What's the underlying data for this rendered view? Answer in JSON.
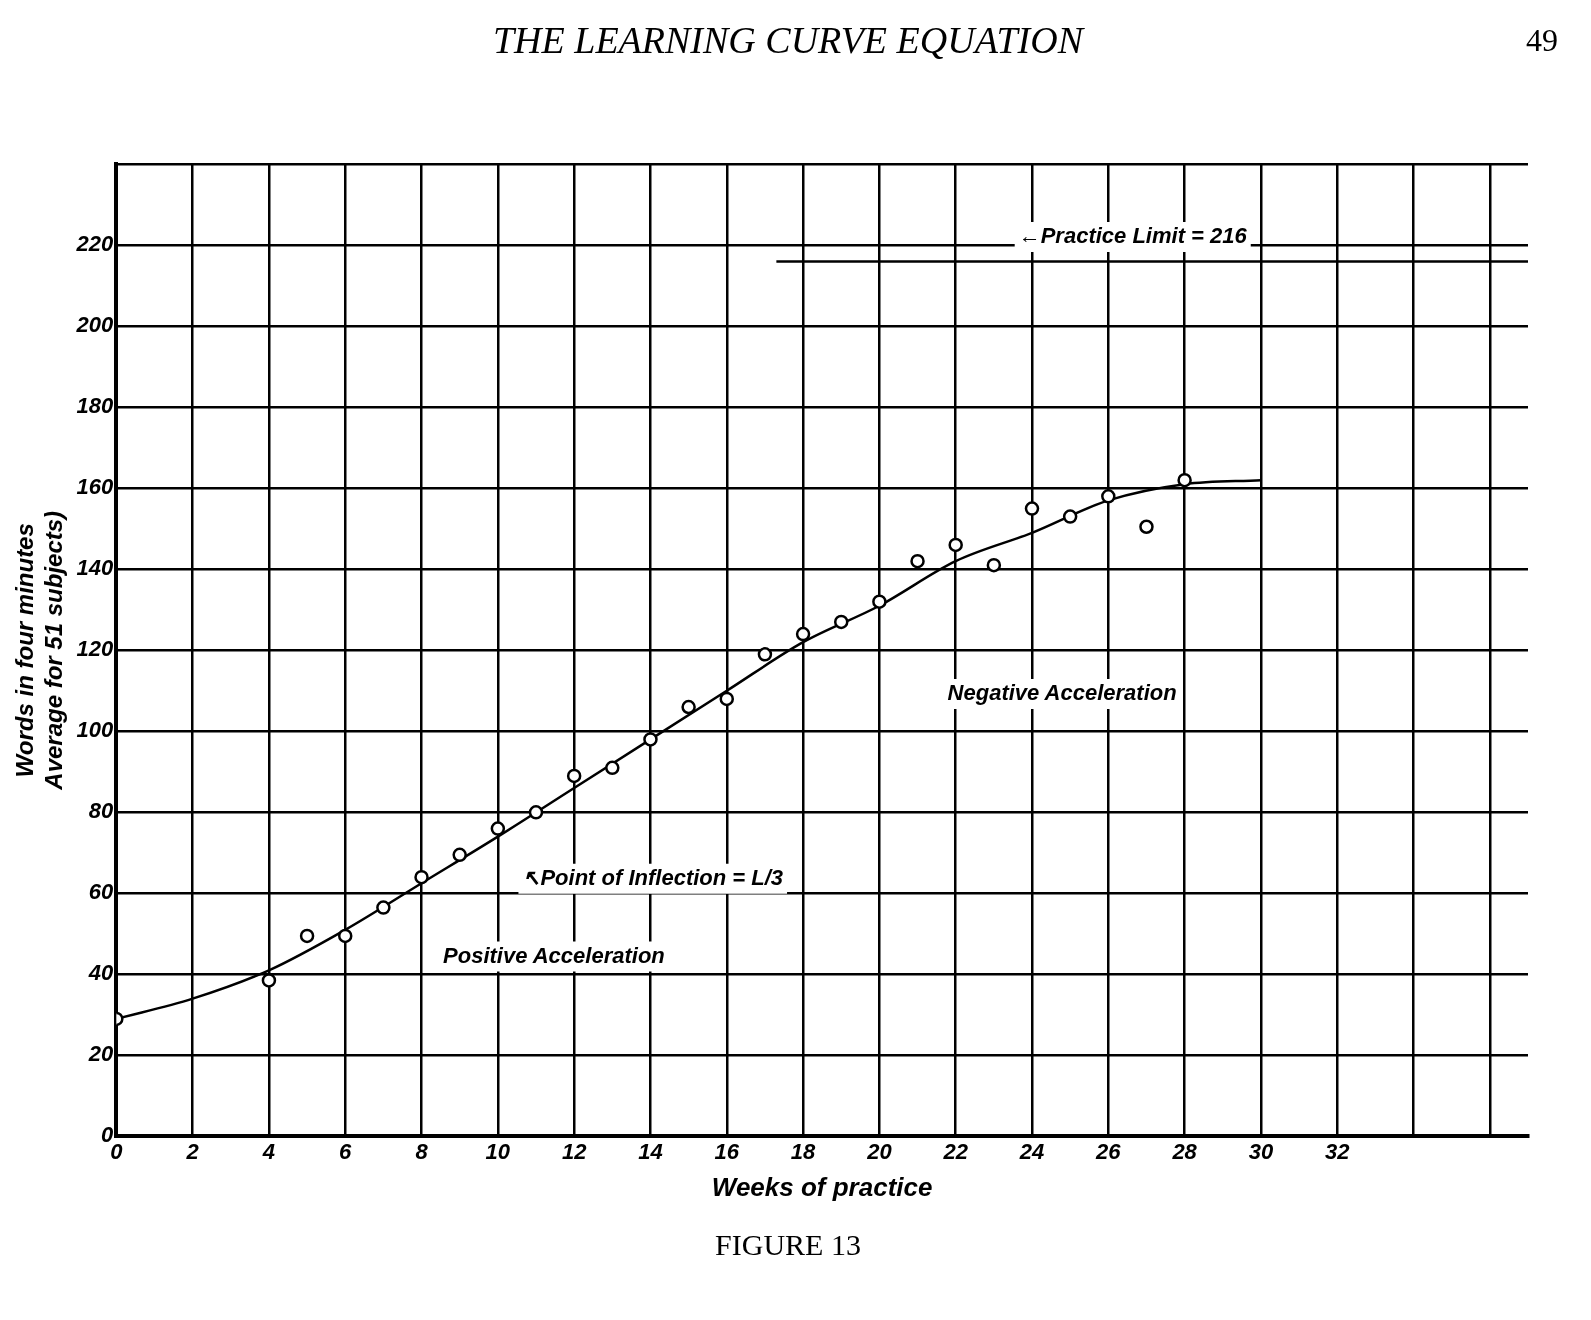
{
  "chart_data": {
    "type": "scatter",
    "title": "THE LEARNING CURVE EQUATION",
    "xlabel": "Weeks of practice",
    "ylabel": "Words in four minutes\nAverage for 51 subjects)",
    "xlim": [
      0,
      37
    ],
    "xticks": [
      0,
      2,
      4,
      6,
      8,
      10,
      12,
      14,
      16,
      18,
      20,
      22,
      24,
      26,
      28,
      30,
      32,
      {
        "value": 34,
        "label": null
      },
      {
        "value": 36,
        "label": null
      }
    ],
    "ylim": [
      0,
      240
    ],
    "yticks": [
      0,
      20,
      40,
      60,
      80,
      100,
      120,
      140,
      160,
      180,
      200,
      220,
      {
        "value": 240,
        "label": null
      }
    ],
    "grid": true,
    "legend": false,
    "series": [
      {
        "type": "scatter",
        "color": "#000000",
        "marker": "circle",
        "x": [
          0,
          4,
          5,
          6,
          7,
          8,
          9,
          10,
          11,
          12,
          13,
          14,
          15,
          16,
          17,
          18,
          19,
          20,
          21,
          22,
          23,
          24,
          25,
          26,
          27,
          28
        ],
        "values": [
          29,
          38.5,
          49.5,
          49.5,
          56.5,
          64,
          69.5,
          76,
          80,
          89,
          91,
          98,
          106,
          108,
          119,
          124,
          127,
          132,
          142,
          146,
          141,
          155,
          153,
          158,
          150.5,
          162
        ]
      },
      {
        "type": "line",
        "color": "#000000",
        "marker": "none",
        "x": [
          0,
          2,
          4,
          6,
          8,
          10,
          12,
          14,
          16,
          18,
          20,
          22,
          24,
          26,
          28,
          30
        ],
        "values": [
          29,
          34,
          41,
          51,
          62.5,
          74,
          86,
          98,
          110,
          122,
          131,
          142,
          149,
          157,
          161,
          162
        ]
      },
      {
        "type": "line",
        "color": "#000000",
        "marker": "none",
        "x": [
          17.3,
          37
        ],
        "values": [
          216,
          216
        ]
      }
    ],
    "annotations": [
      "←Practice Limit = 216",
      "Negative Acceleration",
      "↖Point of Inflection = L/3",
      "Positive Acceleration",
      "49",
      "FIGURE 13"
    ]
  }
}
